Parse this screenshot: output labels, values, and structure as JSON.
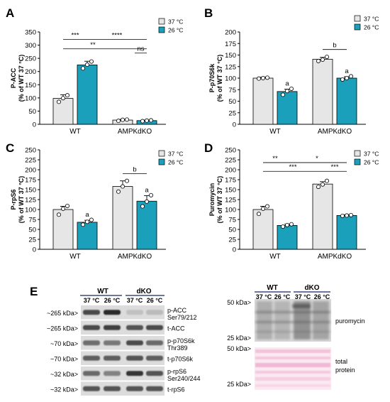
{
  "panel_labels": [
    "A",
    "B",
    "C",
    "D",
    "E"
  ],
  "legend": {
    "a": "37 °C",
    "b": "26 °C"
  },
  "colors": {
    "c37": "#e6e6e6",
    "c26": "#1aa0bb",
    "edge": "#000000",
    "dot": "#ffffff"
  },
  "chart_data": [
    {
      "type": "bar",
      "panel": "A",
      "ylabel_line1": "P-ACC",
      "ylabel_line2": "(% of WT 37 °C)",
      "categories": [
        "WT",
        "AMPKdKO"
      ],
      "series": [
        {
          "name": "37 °C",
          "values": [
            98,
            16
          ],
          "errors": [
            14,
            3
          ],
          "points": [
            [
              85,
              110,
              99
            ],
            [
              13,
              18,
              17
            ]
          ]
        },
        {
          "name": "26 °C",
          "values": [
            225,
            14
          ],
          "errors": [
            14,
            2
          ],
          "points": [
            [
              212,
              238,
              226
            ],
            [
              12,
              15,
              14
            ]
          ]
        }
      ],
      "ylim": [
        0,
        350
      ],
      "yticks": [
        0,
        50,
        100,
        150,
        200,
        250,
        300,
        350
      ],
      "brackets": [
        {
          "from": 0,
          "to": 1,
          "level": 322,
          "label": "***"
        },
        {
          "from": 1,
          "to": 3,
          "level": 322,
          "label": "****"
        },
        {
          "from": 0,
          "to": 2,
          "level": 286,
          "label": "**"
        },
        {
          "from": 2,
          "to": 3,
          "level": 286,
          "label": ""
        },
        {
          "from": 2.5,
          "to": 3.2,
          "level": 270,
          "label": "ns",
          "gap": true
        }
      ],
      "bar_marks": []
    },
    {
      "type": "bar",
      "panel": "B",
      "ylabel_line1": "P-p70S6k",
      "ylabel_line2": "(% of WT 37 °C)",
      "categories": [
        "WT",
        "AMPKdKO"
      ],
      "series": [
        {
          "name": "37 °C",
          "values": [
            100,
            141
          ],
          "errors": [
            2,
            4
          ],
          "points": [
            [
              99,
              101,
              100
            ],
            [
              137,
              146,
              140
            ]
          ]
        },
        {
          "name": "26 °C",
          "values": [
            71,
            100
          ],
          "errors": [
            5,
            3
          ],
          "points": [
            [
              64,
              77,
              72
            ],
            [
              97,
              104,
              100
            ]
          ]
        }
      ],
      "ylim": [
        0,
        200
      ],
      "yticks": [
        0,
        25,
        50,
        75,
        100,
        125,
        150,
        175,
        200
      ],
      "brackets": [
        {
          "from": 2,
          "to": 3,
          "level": 162,
          "label": "b"
        }
      ],
      "bar_marks": [
        {
          "bar": 1,
          "label": "a"
        },
        {
          "bar": 3,
          "label": "a"
        }
      ]
    },
    {
      "type": "bar",
      "panel": "C",
      "ylabel_line1": "P-rpS6",
      "ylabel_line2": "(% of WT 37 °C)",
      "categories": [
        "WT",
        "AMPKdKO"
      ],
      "series": [
        {
          "name": "37 °C",
          "values": [
            100,
            158
          ],
          "errors": [
            8,
            14
          ],
          "points": [
            [
              87,
              109,
              102
            ],
            [
              145,
              172,
              158
            ]
          ]
        },
        {
          "name": "26 °C",
          "values": [
            68,
            121
          ],
          "errors": [
            5,
            14
          ],
          "points": [
            [
              62,
              74,
              69
            ],
            [
              108,
              136,
              120
            ]
          ]
        }
      ],
      "ylim": [
        0,
        250
      ],
      "yticks": [
        0,
        25,
        50,
        75,
        100,
        125,
        150,
        175,
        200,
        225,
        250
      ],
      "brackets": [
        {
          "from": 2,
          "to": 3,
          "level": 190,
          "label": "b"
        }
      ],
      "bar_marks": [
        {
          "bar": 1,
          "label": "a"
        },
        {
          "bar": 3,
          "label": "a"
        }
      ]
    },
    {
      "type": "bar",
      "panel": "D",
      "ylabel_line1": "Puromycin",
      "ylabel_line2": "(% of WT 37 °C)",
      "categories": [
        "WT",
        "AMPKdKO"
      ],
      "series": [
        {
          "name": "37 °C",
          "values": [
            100,
            164
          ],
          "errors": [
            8,
            6
          ],
          "points": [
            [
              89,
              108,
              102
            ],
            [
              157,
              172,
              163
            ]
          ]
        },
        {
          "name": "26 °C",
          "values": [
            60,
            85
          ],
          "errors": [
            3,
            2
          ],
          "points": [
            [
              57,
              63,
              61
            ],
            [
              84,
              86,
              85
            ]
          ]
        }
      ],
      "ylim": [
        0,
        250
      ],
      "yticks": [
        0,
        25,
        50,
        75,
        100,
        125,
        150,
        175,
        200,
        225,
        250
      ],
      "brackets": [
        {
          "from": 0,
          "to": 1,
          "level": 218,
          "label": "**"
        },
        {
          "from": 1,
          "to": 3,
          "level": 218,
          "label": "*"
        },
        {
          "from": 0,
          "to": 2,
          "level": 196,
          "label": "***"
        },
        {
          "from": 2,
          "to": 3,
          "level": 196,
          "label": "***"
        }
      ],
      "bar_marks": []
    }
  ],
  "blot_left": {
    "groups": [
      "WT",
      "dKO"
    ],
    "lanes": [
      "37 °C",
      "26 °C",
      "37 °C",
      "26 °C"
    ],
    "rows": [
      {
        "marker": "~265 kDa>",
        "label1": "p-ACC",
        "label2": "Ser79/212",
        "intensity": [
          0.75,
          0.9,
          0.12,
          0.15
        ]
      },
      {
        "marker": "~265 kDa>",
        "label1": "t-ACC",
        "label2": "",
        "intensity": [
          0.75,
          0.8,
          0.7,
          0.75
        ]
      },
      {
        "marker": "~70 kDa>",
        "label1": "p-p70S6k",
        "label2": "Thr389",
        "intensity": [
          0.55,
          0.5,
          0.75,
          0.6
        ]
      },
      {
        "marker": "~70 kDa>",
        "label1": "t-p70S6k",
        "label2": "",
        "intensity": [
          0.65,
          0.65,
          0.7,
          0.65
        ]
      },
      {
        "marker": "~32 kDa>",
        "label1": "p-rpS6",
        "label2": "Ser240/244",
        "intensity": [
          0.6,
          0.45,
          0.85,
          0.7
        ]
      },
      {
        "marker": "~32 kDa>",
        "label1": "t-rpS6",
        "label2": "",
        "intensity": [
          0.7,
          0.7,
          0.7,
          0.7
        ]
      }
    ]
  },
  "blot_right": {
    "groups": [
      "WT",
      "dKO"
    ],
    "lanes": [
      "37 °C",
      "26 °C",
      "37 °C",
      "26 °C"
    ],
    "markers_top": [
      "50 kDa>",
      "25 kDa>"
    ],
    "markers_bottom": [
      "50 kDa>",
      "25 kDa>"
    ],
    "label_top": "puromycin",
    "label_bottom1": "total",
    "label_bottom2": "protein"
  }
}
